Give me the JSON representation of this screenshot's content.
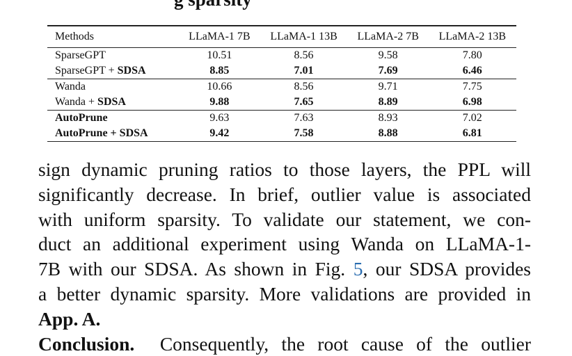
{
  "top_fragment": "g sparsity",
  "table": {
    "headers": [
      "Methods",
      "LLaMA-1 7B",
      "LLaMA-1 13B",
      "LLaMA-2 7B",
      "LLaMA-2 13B"
    ],
    "rows": [
      {
        "method": "SparseGPT",
        "suffix": "",
        "values": [
          "10.51",
          "8.56",
          "9.58",
          "7.80"
        ],
        "bold_values": false,
        "bold_method": false
      },
      {
        "method": "SparseGPT + ",
        "suffix": "SDSA",
        "values": [
          "8.85",
          "7.01",
          "7.69",
          "6.46"
        ],
        "bold_values": true,
        "bold_method": false
      },
      {
        "method": "Wanda",
        "suffix": "",
        "values": [
          "10.66",
          "8.56",
          "9.71",
          "7.75"
        ],
        "bold_values": false,
        "bold_method": false
      },
      {
        "method": "Wanda + ",
        "suffix": "SDSA",
        "values": [
          "9.88",
          "7.65",
          "8.89",
          "6.98"
        ],
        "bold_values": true,
        "bold_method": false
      },
      {
        "method": "AutoPrune",
        "suffix": "",
        "values": [
          "9.63",
          "7.63",
          "8.93",
          "7.02"
        ],
        "bold_values": false,
        "bold_method": true
      },
      {
        "method": "AutoPrune + SDSA",
        "suffix": "",
        "values": [
          "9.42",
          "7.58",
          "8.88",
          "6.81"
        ],
        "bold_values": true,
        "bold_method": true
      }
    ]
  },
  "body": {
    "l1": "sign dynamic pruning ratios to those layers, the PPL will",
    "l2": "significantly decrease.  In brief, outlier value is associated",
    "l3": "with uniform sparsity.  To validate our statement, we con-",
    "l4": "duct an additional experiment using Wanda on LLaMA-1-",
    "l5a": "7B with our SDSA. As shown in Fig. ",
    "l5link": "5",
    "l5b": ", our SDSA provides",
    "l6": "a better dynamic sparsity. More validations are provided in",
    "l7": "App. A.",
    "l8head": "Conclusion.",
    "l8": "  Consequently, the root cause of the outlier"
  },
  "colors": {
    "link": "#2a6db0"
  }
}
